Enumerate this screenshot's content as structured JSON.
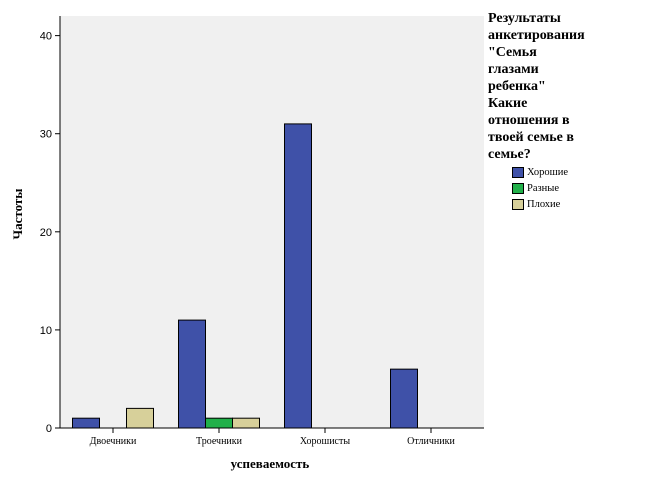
{
  "chart_data": {
    "type": "bar",
    "title": "",
    "xlabel": "успеваемость",
    "ylabel": "Частоты",
    "categories": [
      "Двоечники",
      "Троечники",
      "Хорошисты",
      "Отличники"
    ],
    "ylim": [
      0,
      42
    ],
    "yticks": [
      0,
      10,
      20,
      30,
      40
    ],
    "grid": false,
    "legend_position": "right",
    "legend_title": "Результаты\nанкетирования\n\"Семья\nглазами\nребенка\"\nКакие\nотношения в\nтвоей семье в\nсемье?",
    "series": [
      {
        "name": "Хорошие",
        "color": "#3f51a8",
        "values": [
          1,
          11,
          31,
          6
        ]
      },
      {
        "name": "Разные",
        "color": "#21b04a",
        "values": [
          0,
          1,
          0,
          0
        ]
      },
      {
        "name": "Плохие",
        "color": "#d7d09a",
        "values": [
          2,
          1,
          0,
          0
        ]
      }
    ],
    "plot_background": "#f0f0f0"
  }
}
